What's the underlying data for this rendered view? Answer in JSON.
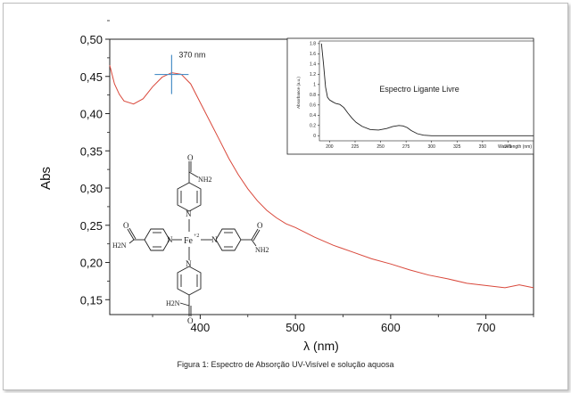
{
  "chart_data": [
    {
      "type": "line",
      "xlabel": "λ (nm)",
      "ylabel": "Abs",
      "xlim": [
        305,
        750
      ],
      "ylim": [
        0.13,
        0.5
      ],
      "xticks": [
        400,
        500,
        600,
        700
      ],
      "yticks": [
        0.15,
        0.2,
        0.25,
        0.3,
        0.35,
        0.4,
        0.45,
        0.5
      ],
      "ytick_labels": [
        "0,15",
        "0,20",
        "0,25",
        "0,30",
        "0,35",
        "0,40",
        "0,45",
        "0,50"
      ],
      "series": [
        {
          "color": "#d9483b",
          "x": [
            305,
            310,
            315,
            320,
            330,
            340,
            350,
            360,
            370,
            380,
            390,
            400,
            410,
            420,
            430,
            440,
            450,
            460,
            470,
            480,
            490,
            500,
            520,
            540,
            560,
            580,
            600,
            620,
            640,
            660,
            680,
            700,
            720,
            735,
            750
          ],
          "y": [
            0.465,
            0.44,
            0.426,
            0.417,
            0.413,
            0.42,
            0.436,
            0.449,
            0.455,
            0.453,
            0.44,
            0.415,
            0.39,
            0.365,
            0.34,
            0.318,
            0.299,
            0.283,
            0.27,
            0.26,
            0.252,
            0.247,
            0.234,
            0.223,
            0.214,
            0.205,
            0.198,
            0.19,
            0.183,
            0.178,
            0.172,
            0.169,
            0.166,
            0.17,
            0.166
          ]
        }
      ],
      "annotations": [
        {
          "text": "370 nm",
          "x": 370,
          "y": 0.455
        }
      ]
    },
    {
      "type": "line",
      "title": "Espectro Ligante Livre",
      "xlabel": "Wavelength (nm)",
      "ylabel": "Absorbance (a.u.)",
      "xlim": [
        190,
        400
      ],
      "ylim": [
        -0.1,
        1.85
      ],
      "xticks": [
        200,
        225,
        250,
        275,
        300,
        325,
        350,
        375
      ],
      "yticks": [
        0,
        0.2,
        0.4,
        0.6,
        0.8,
        1.0,
        1.2,
        1.4,
        1.6,
        1.8
      ],
      "ytick_labels": [
        "0",
        "0.2",
        "0.4",
        "0.6",
        "0.8",
        "1",
        "1.2",
        "1.4",
        "1.6",
        "1.8"
      ],
      "series": [
        {
          "color": "#222222",
          "x": [
            192,
            194,
            196,
            198,
            200,
            203,
            206,
            210,
            214,
            218,
            222,
            226,
            232,
            240,
            248,
            256,
            262,
            268,
            272,
            276,
            280,
            286,
            292,
            300,
            320,
            340,
            360,
            380,
            400
          ],
          "y": [
            1.8,
            1.4,
            0.95,
            0.75,
            0.7,
            0.66,
            0.63,
            0.61,
            0.55,
            0.44,
            0.34,
            0.26,
            0.18,
            0.12,
            0.11,
            0.14,
            0.18,
            0.2,
            0.19,
            0.16,
            0.1,
            0.04,
            0.01,
            0.0,
            0.0,
            0.0,
            0.0,
            0.0,
            0.0
          ]
        }
      ]
    }
  ],
  "structure": {
    "metal": "Fe",
    "charge": "+2",
    "nitrogen": "N",
    "amide_top": "NH2",
    "amide_right": "NH2",
    "amide_left": "H2N",
    "amide_bottom": "H2N",
    "oxygen": "O"
  },
  "caption": "Figura 1: Espectro de Absorção UV-Visível  e solução aquosa"
}
